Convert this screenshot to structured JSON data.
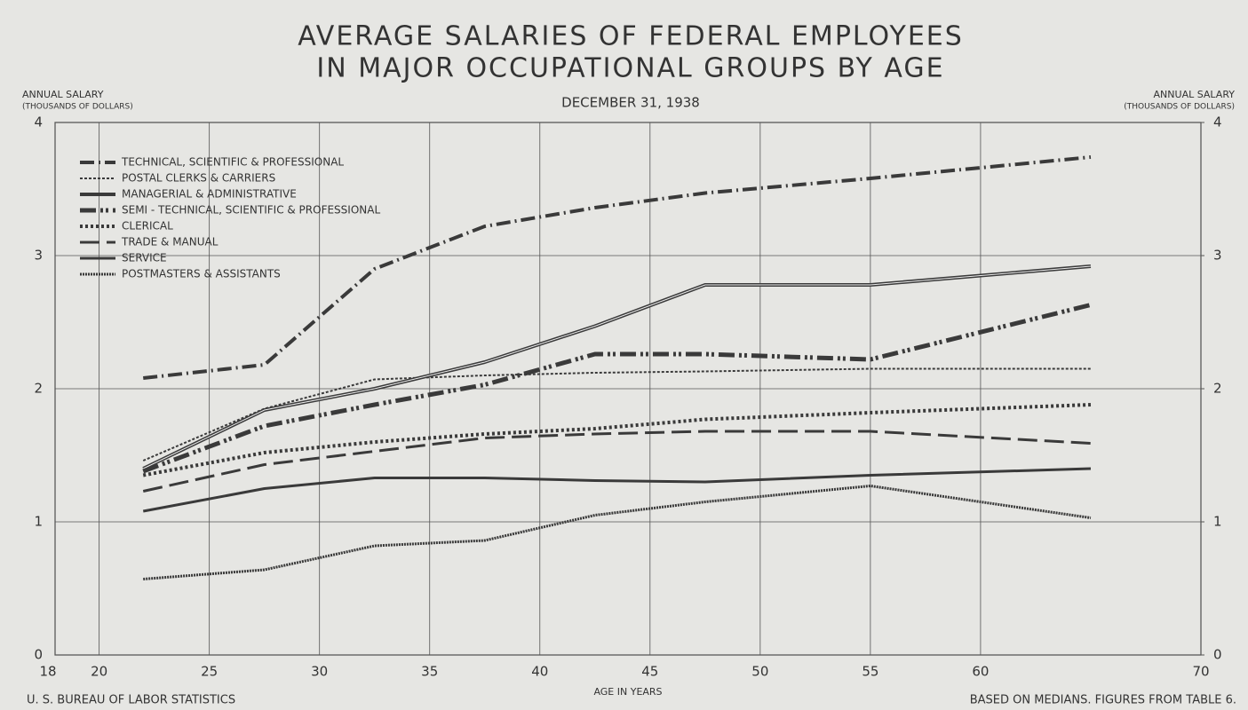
{
  "chart_data": {
    "type": "line",
    "title": [
      "AVERAGE SALARIES OF FEDERAL EMPLOYEES",
      "IN MAJOR OCCUPATIONAL GROUPS BY AGE"
    ],
    "subtitle": "DECEMBER 31, 1938",
    "ylabel": [
      "ANNUAL SALARY",
      "(THOUSANDS OF DOLLARS)"
    ],
    "y2label": [
      "ANNUAL SALARY",
      "(THOUSANDS OF DOLLARS)"
    ],
    "xlabel": "AGE IN YEARS",
    "source": "U. S. BUREAU OF LABOR STATISTICS",
    "note": "BASED ON MEDIANS. FIGURES FROM TABLE 6.",
    "x": [
      22,
      27.5,
      32.5,
      37.5,
      42.5,
      47.5,
      55,
      65
    ],
    "series": [
      {
        "name": "TECHNICAL, SCIENTIFIC & PROFESSIONAL",
        "color": "#3a3a3a",
        "values": [
          2.08,
          2.18,
          2.9,
          3.22,
          3.36,
          3.47,
          3.58,
          3.74
        ]
      },
      {
        "name": "POSTAL CLERKS & CARRIERS",
        "color": "#3a3a3a",
        "values": [
          1.46,
          1.85,
          2.07,
          2.1,
          2.12,
          2.13,
          2.15,
          2.15
        ]
      },
      {
        "name": "MANAGERIAL & ADMINISTRATIVE",
        "color": "#3a3a3a",
        "values": [
          1.4,
          1.84,
          2.0,
          2.2,
          2.47,
          2.78,
          2.78,
          2.92
        ]
      },
      {
        "name": "SEMI - TECHNICAL, SCIENTIFIC & PROFESSIONAL",
        "color": "#3a3a3a",
        "values": [
          1.38,
          1.72,
          1.88,
          2.03,
          2.26,
          2.26,
          2.22,
          2.63
        ]
      },
      {
        "name": "CLERICAL",
        "color": "#3a3a3a",
        "values": [
          1.35,
          1.52,
          1.6,
          1.66,
          1.7,
          1.77,
          1.82,
          1.88
        ]
      },
      {
        "name": "TRADE & MANUAL",
        "color": "#3a3a3a",
        "values": [
          1.23,
          1.43,
          1.53,
          1.63,
          1.66,
          1.68,
          1.68,
          1.59
        ]
      },
      {
        "name": "SERVICE",
        "color": "#3a3a3a",
        "values": [
          1.08,
          1.25,
          1.33,
          1.33,
          1.31,
          1.3,
          1.35,
          1.4
        ]
      },
      {
        "name": "POSTMASTERS & ASSISTANTS",
        "color": "#3a3a3a",
        "values": [
          0.57,
          0.64,
          0.82,
          0.86,
          1.05,
          1.15,
          1.27,
          1.03
        ]
      }
    ],
    "xlim": [
      18,
      70
    ],
    "xticks": [
      18,
      20,
      25,
      30,
      35,
      40,
      45,
      50,
      55,
      60,
      70
    ],
    "ylim": [
      0,
      4
    ],
    "yticks": [
      0,
      1,
      2,
      3,
      4
    ],
    "y2lim": [
      0,
      4
    ],
    "y2ticks": [
      0,
      1,
      2,
      3,
      4
    ],
    "grid": true,
    "legend": "upper left"
  }
}
